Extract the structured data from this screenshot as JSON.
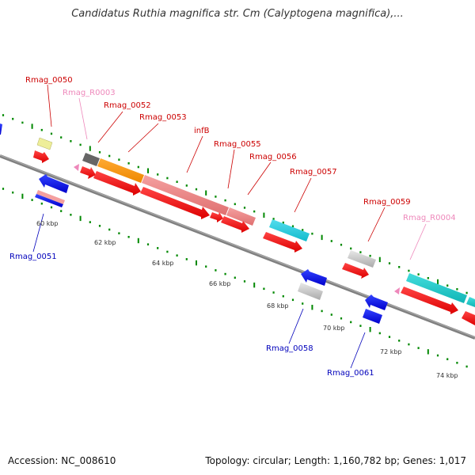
{
  "title": "Candidatus Ruthia magnifica str. Cm (Calyptogena magnifica),...",
  "footer": {
    "accession": "Accession: NC_008610",
    "summary": "Topology: circular; Length: 1,160,782 bp; Genes: 1,017"
  },
  "colors": {
    "forward_label": "#cc0000",
    "reverse_label": "#0000bb",
    "rna_label": "#ee88bb",
    "axis": "#808080",
    "tick": "#008800"
  },
  "kbp_ticks": [
    "60 kbp",
    "62 kbp",
    "64 kbp",
    "66 kbp",
    "68 kbp",
    "70 kbp",
    "72 kbp",
    "74 kbp"
  ],
  "gene_labels": {
    "rmag_0050": "Rmag_0050",
    "rmag_r0003": "Rmag_R0003",
    "rmag_0052": "Rmag_0052",
    "rmag_0053": "Rmag_0053",
    "infb": "infB",
    "rmag_0055": "Rmag_0055",
    "rmag_0056": "Rmag_0056",
    "rmag_0057": "Rmag_0057",
    "rmag_0059": "Rmag_0059",
    "rmag_r0004": "Rmag_R0004",
    "rmag_0051": "Rmag_0051",
    "rmag_0058": "Rmag_0058",
    "rmag_0061": "Rmag_0061"
  }
}
